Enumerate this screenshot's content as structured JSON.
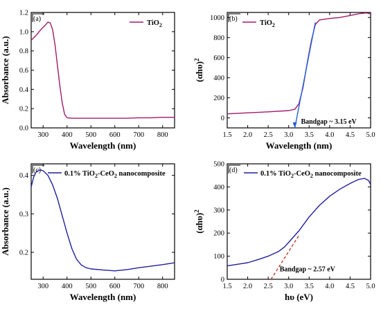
{
  "colors": {
    "tio2": "#9e1a6e",
    "composite": "#1f1f9e",
    "fit_c": "#1f5fe0",
    "fit_d": "#c0392b",
    "axis": "#000000"
  },
  "chart_data": [
    {
      "panel": "a",
      "tag": "(a)",
      "type": "line",
      "xlabel": "Wavelength (nm)",
      "ylabel": "Absorbance (a.u.)",
      "xlim": [
        250,
        850
      ],
      "ylim": [
        0.0,
        1.2
      ],
      "xticks": [
        300,
        400,
        500,
        600,
        700,
        800
      ],
      "yticks": [
        0.0,
        0.2,
        0.4,
        0.6,
        0.8,
        1.0,
        1.2
      ],
      "xtick_labels": [
        "300",
        "400",
        "500",
        "600",
        "700",
        "800"
      ],
      "ytick_labels": [
        "0.0",
        "0.2",
        "0.4",
        "0.6",
        "0.8",
        "1.0",
        "1.2"
      ],
      "legend": {
        "position": "top-right",
        "label": "TiO",
        "sub": "2"
      },
      "series": [
        {
          "name": "TiO2",
          "color_key": "tio2",
          "x": [
            250,
            270,
            290,
            310,
            320,
            330,
            340,
            350,
            360,
            370,
            380,
            390,
            400,
            420,
            450,
            500,
            550,
            600,
            650,
            700,
            750,
            800,
            850
          ],
          "y": [
            0.91,
            0.96,
            1.02,
            1.07,
            1.1,
            1.09,
            1.02,
            0.86,
            0.65,
            0.44,
            0.26,
            0.14,
            0.105,
            0.1,
            0.1,
            0.1,
            0.1,
            0.1,
            0.1,
            0.105,
            0.105,
            0.11,
            0.11
          ]
        }
      ]
    },
    {
      "panel": "b",
      "tag": "(b)",
      "type": "line",
      "xlabel": "Wavelength (nm)",
      "ylabel_main": "(αhυ)",
      "ylabel_sup": "2",
      "xlim": [
        1.5,
        5.0
      ],
      "ylim": [
        -100,
        1050
      ],
      "xticks": [
        1.5,
        2.0,
        2.5,
        3.0,
        3.5,
        4.0,
        4.5,
        5.0
      ],
      "yticks": [
        0,
        200,
        400,
        600,
        800,
        1000
      ],
      "xtick_labels": [
        "1.5",
        "2.0",
        "2.5",
        "3.0",
        "3.5",
        "4.0",
        "4.5",
        "5.0"
      ],
      "ytick_labels": [
        "0",
        "200",
        "400",
        "600",
        "800",
        "1000"
      ],
      "legend": {
        "position": "top-left",
        "label": "TiO",
        "sub": "2"
      },
      "annotation": "Bandgap ~ 3.15 eV",
      "annotation_anchor": [
        3.3,
        -60
      ],
      "arrow_end": [
        3.15,
        -100
      ],
      "fit_line": {
        "x": [
          3.15,
          3.65
        ],
        "y": [
          -100,
          950
        ]
      },
      "series": [
        {
          "name": "TiO2",
          "color_key": "tio2",
          "x": [
            1.5,
            2.0,
            2.5,
            3.0,
            3.15,
            3.25,
            3.35,
            3.45,
            3.55,
            3.65,
            3.75,
            4.0,
            4.25,
            4.5,
            4.75,
            4.9,
            5.0
          ],
          "y": [
            40,
            50,
            60,
            72,
            85,
            140,
            300,
            540,
            760,
            930,
            975,
            990,
            1000,
            1020,
            1040,
            1045,
            1035
          ]
        }
      ]
    },
    {
      "panel": "c",
      "tag": "(c)",
      "type": "line",
      "xlabel": "Wavelength (nm)",
      "ylabel": "Absorbance (a.u.)",
      "xlim": [
        250,
        850
      ],
      "ylim": [
        0.13,
        0.43
      ],
      "xticks": [
        300,
        400,
        500,
        600,
        700,
        800
      ],
      "yticks": [
        0.2,
        0.3,
        0.4
      ],
      "xtick_labels": [
        "300",
        "400",
        "500",
        "600",
        "700",
        "800"
      ],
      "ytick_labels": [
        "0.2",
        "0.3",
        "0.4"
      ],
      "legend": {
        "position": "top-left",
        "label_pre": "0.1% TiO",
        "sub1": "2",
        "label_mid": "-CeO",
        "sub2": "2",
        "label_post": " nanocomposite"
      },
      "series": [
        {
          "name": "0.1% TiO2-CeO2 nanocomposite",
          "color_key": "composite",
          "x": [
            250,
            260,
            270,
            280,
            290,
            300,
            320,
            340,
            360,
            380,
            400,
            420,
            440,
            460,
            480,
            500,
            550,
            600,
            650,
            700,
            750,
            800,
            850
          ],
          "y": [
            0.37,
            0.395,
            0.408,
            0.413,
            0.414,
            0.412,
            0.4,
            0.375,
            0.34,
            0.295,
            0.25,
            0.21,
            0.182,
            0.167,
            0.16,
            0.157,
            0.154,
            0.152,
            0.155,
            0.16,
            0.164,
            0.168,
            0.173
          ]
        }
      ]
    },
    {
      "panel": "d",
      "tag": "(d)",
      "type": "line",
      "xlabel": "hυ (eV)",
      "ylabel_main": "(αhυ)",
      "ylabel_sup": "2",
      "xlim": [
        1.5,
        5.0
      ],
      "ylim": [
        0,
        500
      ],
      "xticks": [
        1.5,
        2.0,
        2.5,
        3.0,
        3.5,
        4.0,
        4.5,
        5.0
      ],
      "yticks": [
        0,
        100,
        200,
        300,
        400,
        500
      ],
      "xtick_labels": [
        "1.5",
        "2.0",
        "2.5",
        "3.0",
        "3.5",
        "4.0",
        "4.5",
        "5.0"
      ],
      "ytick_labels": [
        "0",
        "100",
        "200",
        "300",
        "400",
        "500"
      ],
      "legend": {
        "position": "top-left",
        "label_pre": "0.1% TiO",
        "sub1": "2",
        "label_mid": "-CeO",
        "sub2": "2",
        "label_post": " nanocomposite"
      },
      "annotation": "Bandgap ~ 2.57 eV",
      "annotation_anchor": [
        2.78,
        35
      ],
      "fit_line": {
        "x": [
          2.57,
          3.25
        ],
        "y": [
          0,
          190
        ]
      },
      "series": [
        {
          "name": "0.1% TiO2-CeO2 nanocomposite",
          "color_key": "composite",
          "x": [
            1.5,
            1.75,
            2.0,
            2.25,
            2.5,
            2.75,
            2.9,
            3.0,
            3.25,
            3.5,
            3.75,
            4.0,
            4.25,
            4.5,
            4.7,
            4.85,
            4.95,
            5.0
          ],
          "y": [
            58,
            65,
            72,
            85,
            100,
            120,
            140,
            160,
            210,
            270,
            320,
            360,
            390,
            415,
            432,
            437,
            428,
            410
          ]
        }
      ]
    }
  ]
}
